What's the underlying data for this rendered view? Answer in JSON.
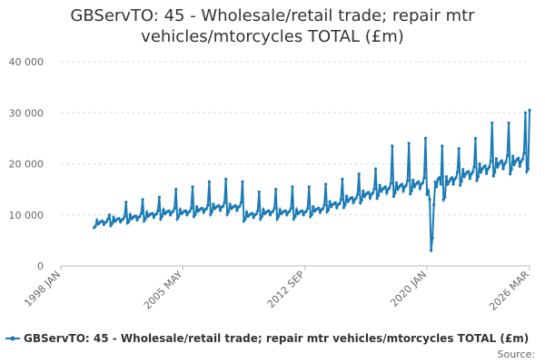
{
  "chart_data": {
    "type": "line",
    "title": "GBServTO: 45 - Wholesale/retail trade; repair mtr vehicles/mtorcycles TOTAL (£m)",
    "source": "Source:",
    "x": [
      "2000 JAN",
      "2000 FEB",
      "2000 MAR",
      "2000 APR",
      "2000 MAY",
      "2000 JUN",
      "2000 JUL",
      "2000 AUG",
      "2000 SEP",
      "2000 OCT",
      "2000 NOV",
      "2000 DEC",
      "2001 JAN",
      "2001 FEB",
      "2001 MAR",
      "2001 APR",
      "2001 MAY",
      "2001 JUN",
      "2001 JUL",
      "2001 AUG",
      "2001 SEP",
      "2001 OCT",
      "2001 NOV",
      "2001 DEC",
      "2002 JAN",
      "2002 FEB",
      "2002 MAR",
      "2002 APR",
      "2002 MAY",
      "2002 JUN",
      "2002 JUL",
      "2002 AUG",
      "2002 SEP",
      "2002 OCT",
      "2002 NOV",
      "2002 DEC",
      "2003 JAN",
      "2003 FEB",
      "2003 MAR",
      "2003 APR",
      "2003 MAY",
      "2003 JUN",
      "2003 JUL",
      "2003 AUG",
      "2003 SEP",
      "2003 OCT",
      "2003 NOV",
      "2003 DEC",
      "2004 JAN",
      "2004 FEB",
      "2004 MAR",
      "2004 APR",
      "2004 MAY",
      "2004 JUN",
      "2004 JUL",
      "2004 AUG",
      "2004 SEP",
      "2004 OCT",
      "2004 NOV",
      "2004 DEC",
      "2005 JAN",
      "2005 FEB",
      "2005 MAR",
      "2005 APR",
      "2005 MAY",
      "2005 JUN",
      "2005 JUL",
      "2005 AUG",
      "2005 SEP",
      "2005 OCT",
      "2005 NOV",
      "2005 DEC",
      "2006 JAN",
      "2006 FEB",
      "2006 MAR",
      "2006 APR",
      "2006 MAY",
      "2006 JUN",
      "2006 JUL",
      "2006 AUG",
      "2006 SEP",
      "2006 OCT",
      "2006 NOV",
      "2006 DEC",
      "2007 JAN",
      "2007 FEB",
      "2007 MAR",
      "2007 APR",
      "2007 MAY",
      "2007 JUN",
      "2007 JUL",
      "2007 AUG",
      "2007 SEP",
      "2007 OCT",
      "2007 NOV",
      "2007 DEC",
      "2008 JAN",
      "2008 FEB",
      "2008 MAR",
      "2008 APR",
      "2008 MAY",
      "2008 JUN",
      "2008 JUL",
      "2008 AUG",
      "2008 SEP",
      "2008 OCT",
      "2008 NOV",
      "2008 DEC",
      "2009 JAN",
      "2009 FEB",
      "2009 MAR",
      "2009 APR",
      "2009 MAY",
      "2009 JUN",
      "2009 JUL",
      "2009 AUG",
      "2009 SEP",
      "2009 OCT",
      "2009 NOV",
      "2009 DEC",
      "2010 JAN",
      "2010 FEB",
      "2010 MAR",
      "2010 APR",
      "2010 MAY",
      "2010 JUN",
      "2010 JUL",
      "2010 AUG",
      "2010 SEP",
      "2010 OCT",
      "2010 NOV",
      "2010 DEC",
      "2011 JAN",
      "2011 FEB",
      "2011 MAR",
      "2011 APR",
      "2011 MAY",
      "2011 JUN",
      "2011 JUL",
      "2011 AUG",
      "2011 SEP",
      "2011 OCT",
      "2011 NOV",
      "2011 DEC",
      "2012 JAN",
      "2012 FEB",
      "2012 MAR",
      "2012 APR",
      "2012 MAY",
      "2012 JUN",
      "2012 JUL",
      "2012 AUG",
      "2012 SEP",
      "2012 OCT",
      "2012 NOV",
      "2012 DEC",
      "2013 JAN",
      "2013 FEB",
      "2013 MAR",
      "2013 APR",
      "2013 MAY",
      "2013 JUN",
      "2013 JUL",
      "2013 AUG",
      "2013 SEP",
      "2013 OCT",
      "2013 NOV",
      "2013 DEC",
      "2014 JAN",
      "2014 FEB",
      "2014 MAR",
      "2014 APR",
      "2014 MAY",
      "2014 JUN",
      "2014 JUL",
      "2014 AUG",
      "2014 SEP",
      "2014 OCT",
      "2014 NOV",
      "2014 DEC",
      "2015 JAN",
      "2015 FEB",
      "2015 MAR",
      "2015 APR",
      "2015 MAY",
      "2015 JUN",
      "2015 JUL",
      "2015 AUG",
      "2015 SEP",
      "2015 OCT",
      "2015 NOV",
      "2015 DEC",
      "2016 JAN",
      "2016 FEB",
      "2016 MAR",
      "2016 APR",
      "2016 MAY",
      "2016 JUN",
      "2016 JUL",
      "2016 AUG",
      "2016 SEP",
      "2016 OCT",
      "2016 NOV",
      "2016 DEC",
      "2017 JAN",
      "2017 FEB",
      "2017 MAR",
      "2017 APR",
      "2017 MAY",
      "2017 JUN",
      "2017 JUL",
      "2017 AUG",
      "2017 SEP",
      "2017 OCT",
      "2017 NOV",
      "2017 DEC",
      "2018 JAN",
      "2018 FEB",
      "2018 MAR",
      "2018 APR",
      "2018 MAY",
      "2018 JUN",
      "2018 JUL",
      "2018 AUG",
      "2018 SEP",
      "2018 OCT",
      "2018 NOV",
      "2018 DEC",
      "2019 JAN",
      "2019 FEB",
      "2019 MAR",
      "2019 APR",
      "2019 MAY",
      "2019 JUN",
      "2019 JUL",
      "2019 AUG",
      "2019 SEP",
      "2019 OCT",
      "2019 NOV",
      "2019 DEC",
      "2020 JAN",
      "2020 FEB",
      "2020 MAR",
      "2020 APR",
      "2020 MAY",
      "2020 JUN",
      "2020 JUL",
      "2020 AUG",
      "2020 SEP",
      "2020 OCT",
      "2020 NOV",
      "2020 DEC",
      "2021 JAN",
      "2021 FEB",
      "2021 MAR",
      "2021 APR",
      "2021 MAY",
      "2021 JUN",
      "2021 JUL",
      "2021 AUG",
      "2021 SEP",
      "2021 OCT",
      "2021 NOV",
      "2021 DEC",
      "2022 JAN",
      "2022 FEB",
      "2022 MAR",
      "2022 APR",
      "2022 MAY",
      "2022 JUN",
      "2022 JUL",
      "2022 AUG",
      "2022 SEP",
      "2022 OCT",
      "2022 NOV",
      "2022 DEC",
      "2023 JAN",
      "2023 FEB",
      "2023 MAR",
      "2023 APR",
      "2023 MAY",
      "2023 JUN",
      "2023 JUL",
      "2023 AUG",
      "2023 SEP",
      "2023 OCT",
      "2023 NOV",
      "2023 DEC",
      "2024 JAN",
      "2024 FEB",
      "2024 MAR",
      "2024 APR",
      "2024 MAY",
      "2024 JUN",
      "2024 JUL",
      "2024 AUG",
      "2024 SEP",
      "2024 OCT",
      "2024 NOV",
      "2024 DEC",
      "2025 JAN",
      "2025 FEB",
      "2025 MAR",
      "2025 APR",
      "2025 MAY",
      "2025 JUN",
      "2025 JUL",
      "2025 AUG",
      "2025 SEP",
      "2025 OCT",
      "2025 NOV",
      "2025 DEC",
      "2026 JAN",
      "2026 FEB",
      "2026 MAR"
    ],
    "series": [
      {
        "name": "GBServTO: 45 - Wholesale/retail trade; repair mtr vehicles/mtorcycles TOTAL (£m)",
        "color": "#1a7ab5",
        "values": [
          7500,
          7800,
          8900,
          8200,
          8500,
          8700,
          8800,
          8100,
          8500,
          8700,
          9200,
          10000,
          7900,
          8300,
          9500,
          8700,
          9000,
          9200,
          9300,
          8600,
          9000,
          9200,
          9700,
          12500,
          8400,
          8700,
          10000,
          9200,
          9500,
          9700,
          9800,
          9000,
          9500,
          9700,
          10300,
          13000,
          8800,
          9200,
          10500,
          9700,
          10000,
          10200,
          10300,
          9500,
          10000,
          10200,
          10800,
          13500,
          9200,
          9700,
          11000,
          10200,
          10500,
          10700,
          10800,
          10000,
          10500,
          10700,
          11300,
          15000,
          9200,
          9700,
          11000,
          10200,
          10500,
          10700,
          10800,
          10000,
          10500,
          10700,
          11300,
          15500,
          9700,
          10100,
          11600,
          10700,
          11000,
          11200,
          11300,
          10500,
          11000,
          11200,
          11900,
          16500,
          10100,
          10600,
          12100,
          11200,
          11500,
          11700,
          11800,
          10900,
          11500,
          11700,
          12400,
          17000,
          10100,
          10600,
          12100,
          11200,
          11500,
          11700,
          11800,
          10900,
          11500,
          11700,
          12400,
          16500,
          8800,
          9200,
          10500,
          9700,
          10000,
          10200,
          10300,
          9500,
          10000,
          10200,
          10800,
          14500,
          9200,
          9700,
          11000,
          10200,
          10500,
          10700,
          10800,
          10000,
          10500,
          10700,
          11300,
          15000,
          9200,
          9700,
          11000,
          10200,
          10500,
          10700,
          10800,
          10000,
          10500,
          10700,
          11300,
          15500,
          9200,
          9700,
          11000,
          10200,
          10500,
          10700,
          10800,
          10000,
          10500,
          10700,
          11300,
          15500,
          9700,
          10100,
          11600,
          10700,
          11000,
          11200,
          11300,
          10500,
          11000,
          11200,
          11900,
          16000,
          10600,
          11000,
          12600,
          11600,
          12000,
          12200,
          12400,
          11400,
          12000,
          12200,
          13000,
          17000,
          11400,
          12000,
          13700,
          12600,
          13000,
          13300,
          13400,
          12400,
          13000,
          13300,
          14000,
          18000,
          12300,
          12900,
          14700,
          13600,
          14000,
          14300,
          14400,
          13300,
          14000,
          14300,
          15100,
          19000,
          13200,
          13800,
          15800,
          14600,
          15000,
          15300,
          15500,
          14300,
          15000,
          15300,
          16200,
          23500,
          13600,
          14300,
          16300,
          15000,
          15500,
          15800,
          16000,
          14700,
          15500,
          15800,
          16700,
          24000,
          14100,
          14700,
          16800,
          15500,
          16000,
          16300,
          16500,
          15200,
          16000,
          16300,
          17300,
          25000,
          14000,
          14700,
          13000,
          3000,
          5500,
          12000,
          16500,
          15500,
          17000,
          17300,
          16000,
          23500,
          13000,
          13500,
          17500,
          16000,
          16500,
          17000,
          17300,
          16000,
          17000,
          17300,
          18400,
          23000,
          15800,
          16600,
          18900,
          17500,
          18000,
          18400,
          18500,
          17100,
          18000,
          18400,
          19400,
          25000,
          16700,
          17500,
          20000,
          18400,
          19000,
          19400,
          19600,
          18100,
          19000,
          19400,
          20500,
          28000,
          17600,
          18400,
          21000,
          19400,
          20000,
          20400,
          20600,
          19000,
          20000,
          20400,
          21600,
          28000,
          18000,
          18900,
          21500,
          19900,
          20500,
          20900,
          21100,
          19500,
          20500,
          20900,
          22100,
          30000,
          18500,
          19000,
          30500
        ]
      }
    ],
    "xlim": [
      "1998 JAN",
      "2026 MAR"
    ],
    "xticks": [
      "1998 JAN",
      "2005 MAY",
      "2012 SEP",
      "2020 JAN",
      "2026 MAR"
    ],
    "ylim": [
      0,
      40000
    ],
    "yticks": [
      0,
      {
        "value": 10000,
        "label": "10 000"
      },
      {
        "value": 20000,
        "label": "20 000"
      },
      {
        "value": 30000,
        "label": "30 000"
      },
      {
        "value": 40000,
        "label": "40 000"
      }
    ],
    "grid": true
  }
}
